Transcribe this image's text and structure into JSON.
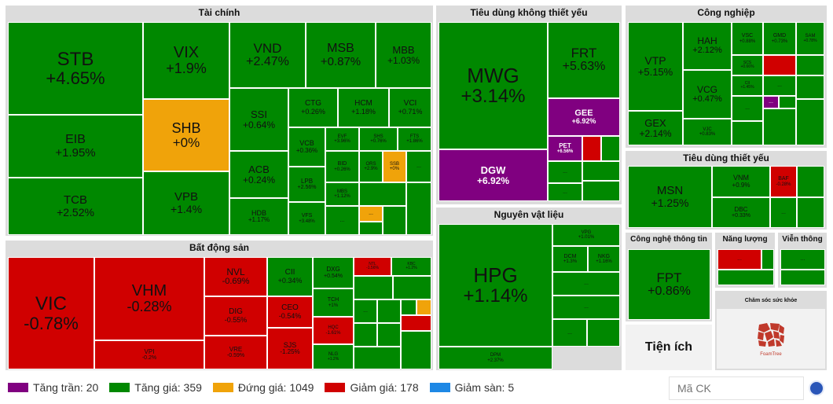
{
  "sectors": {
    "tai_chinh": "Tài chính",
    "bat_dong_san": "Bất động sản",
    "tieu_dung_ktx": "Tiêu dùng không thiết yếu",
    "nguyen_vat_lieu": "Nguyên vật liệu",
    "cong_nghiep": "Công nghiệp",
    "tieu_dung_ty": "Tiêu dùng thiết yếu",
    "cntt": "Công nghệ thông tin",
    "nang_luong": "Năng lượng",
    "vien_thong": "Viễn thông",
    "cham_soc": "Chăm sóc sức khỏe",
    "tien_ich": "Tiện ích"
  },
  "tiles": {
    "STB": {
      "sym": "STB",
      "chg": "+4.65%"
    },
    "VIX": {
      "sym": "VIX",
      "chg": "+1.9%"
    },
    "VND": {
      "sym": "VND",
      "chg": "+2.47%"
    },
    "MSB": {
      "sym": "MSB",
      "chg": "+0.87%"
    },
    "MBB": {
      "sym": "MBB",
      "chg": "+1.03%"
    },
    "EIB": {
      "sym": "EIB",
      "chg": "+1.95%"
    },
    "SHB": {
      "sym": "SHB",
      "chg": "+0%"
    },
    "SSI": {
      "sym": "SSI",
      "chg": "+0.64%"
    },
    "CTG": {
      "sym": "CTG",
      "chg": "+0.26%"
    },
    "HCM": {
      "sym": "HCM",
      "chg": "+1.18%"
    },
    "VCI": {
      "sym": "VCI",
      "chg": "+0.71%"
    },
    "TCB": {
      "sym": "TCB",
      "chg": "+2.52%"
    },
    "VPB": {
      "sym": "VPB",
      "chg": "+1.4%"
    },
    "ACB": {
      "sym": "ACB",
      "chg": "+0.24%"
    },
    "VCB": {
      "sym": "VCB",
      "chg": "+0.36%"
    },
    "EVF": {
      "sym": "EVF",
      "chg": "+3.96%"
    },
    "SHS": {
      "sym": "SHS",
      "chg": "+0.76%"
    },
    "FTS": {
      "sym": "FTS",
      "chg": "+1.86%"
    },
    "BID": {
      "sym": "BID",
      "chg": "+0.26%"
    },
    "ORS": {
      "sym": "ORS",
      "chg": "+2.9%"
    },
    "SSB": {
      "sym": "SSB",
      "chg": "+0%"
    },
    "HDB": {
      "sym": "HDB",
      "chg": "+1.17%"
    },
    "LPB": {
      "sym": "LPB",
      "chg": "+2.56%"
    },
    "MBS": {
      "sym": "MBS",
      "chg": "+1.12%"
    },
    "VFS": {
      "sym": "VFS",
      "chg": "+3.48%"
    },
    "VIC": {
      "sym": "VIC",
      "chg": "-0.78%"
    },
    "VHM": {
      "sym": "VHM",
      "chg": "-0.28%"
    },
    "NVL": {
      "sym": "NVL",
      "chg": "-0.69%"
    },
    "CII": {
      "sym": "CII",
      "chg": "+0.34%"
    },
    "DXG": {
      "sym": "DXG",
      "chg": "+0.54%"
    },
    "NTL": {
      "sym": "NTL",
      "chg": "-1.56%"
    },
    "KBC": {
      "sym": "KBC",
      "chg": "+1.2%"
    },
    "DIG": {
      "sym": "DIG",
      "chg": "-0.55%"
    },
    "CEO": {
      "sym": "CEO",
      "chg": "-0.54%"
    },
    "TCH": {
      "sym": "TCH",
      "chg": "+1%"
    },
    "HQC": {
      "sym": "HQC",
      "chg": "-1.61%"
    },
    "VPI": {
      "sym": "VPI",
      "chg": "-0.2%"
    },
    "VRE": {
      "sym": "VRE",
      "chg": "-0.59%"
    },
    "SJS": {
      "sym": "SJS",
      "chg": "-1.25%"
    },
    "NLG": {
      "sym": "NLG",
      "chg": "+1.2%"
    },
    "MWG": {
      "sym": "MWG",
      "chg": "+3.14%"
    },
    "FRT": {
      "sym": "FRT",
      "chg": "+5.63%"
    },
    "GEE": {
      "sym": "GEE",
      "chg": "+6.92%"
    },
    "DGW": {
      "sym": "DGW",
      "chg": "+6.92%"
    },
    "PET": {
      "sym": "PET",
      "chg": "+6.56%"
    },
    "HPG": {
      "sym": "HPG",
      "chg": "+1.14%"
    },
    "VPG": {
      "sym": "VPG",
      "chg": "+1.01%"
    },
    "DCM": {
      "sym": "DCM",
      "chg": "+1.3%"
    },
    "NKG": {
      "sym": "NKG",
      "chg": "+1.16%"
    },
    "DPM": {
      "sym": "DPM",
      "chg": "+2.37%"
    },
    "VTP": {
      "sym": "VTP",
      "chg": "+5.15%"
    },
    "HAH": {
      "sym": "HAH",
      "chg": "+2.12%"
    },
    "VSC": {
      "sym": "VSC",
      "chg": "+0.88%"
    },
    "GMD": {
      "sym": "GMD",
      "chg": "+0.73%"
    },
    "SAM": {
      "sym": "SAM",
      "chg": "+0.78%"
    },
    "SCS": {
      "sym": "SCS",
      "chg": "+0.66%"
    },
    "CII2": {
      "sym": "CII",
      "chg": "+1.45%"
    },
    "GEX": {
      "sym": "GEX",
      "chg": "+2.14%"
    },
    "VCG": {
      "sym": "VCG",
      "chg": "+0.47%"
    },
    "VJC": {
      "sym": "VJC",
      "chg": "+0.83%"
    },
    "MSN": {
      "sym": "MSN",
      "chg": "+1.25%"
    },
    "VNM": {
      "sym": "VNM",
      "chg": "+0.9%"
    },
    "BAF": {
      "sym": "BAF",
      "chg": "-0.28%"
    },
    "DBC": {
      "sym": "DBC",
      "chg": "+0.33%"
    },
    "FPT": {
      "sym": "FPT",
      "chg": "+0.86%"
    }
  },
  "ellipsis": "...",
  "logo_text": "FoamTree",
  "legend": [
    {
      "label": "Tăng trần: 20",
      "color": "#800080"
    },
    {
      "label": "Tăng giá: 359",
      "color": "#008800"
    },
    {
      "label": "Đứng giá: 1049",
      "color": "#f0a30a"
    },
    {
      "label": "Giảm giá: 178",
      "color": "#d00000"
    },
    {
      "label": "Giảm sàn: 5",
      "color": "#1e88e5"
    }
  ],
  "search": {
    "placeholder": "Mã CK"
  }
}
